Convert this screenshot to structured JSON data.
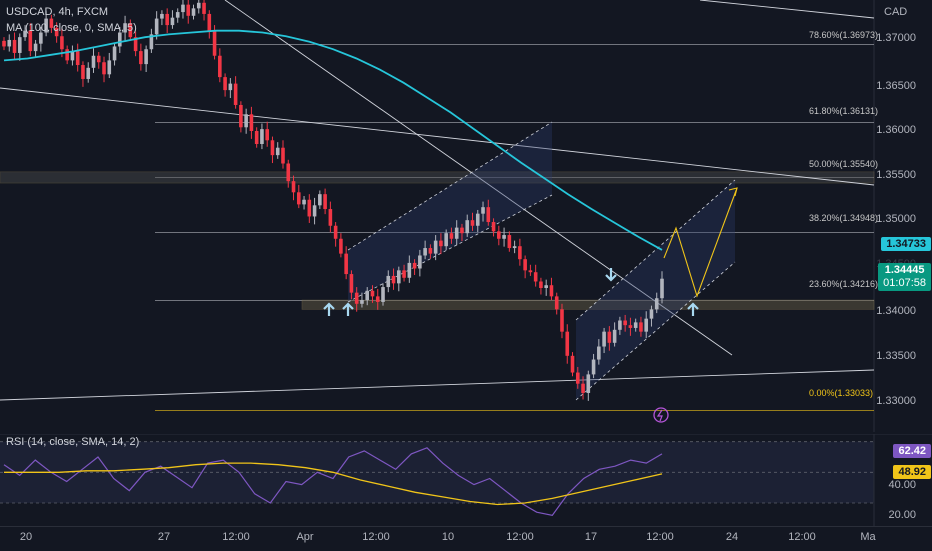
{
  "header": {
    "symbol": "USDCAD, 4h, FXCM",
    "ma_indicator": "MA (100, close, 0, SMA, 5)",
    "currency": "CAD"
  },
  "price_axis": {
    "labels": [
      "1.37000",
      "1.36500",
      "1.36000",
      "1.35500",
      "1.35000",
      "1.34500",
      "1.34000",
      "1.33500",
      "1.33000"
    ],
    "ma_value": "1.34733",
    "last_price": "1.34445",
    "countdown": "01:07:58"
  },
  "fib_levels": [
    {
      "label": "78.60%(1.36973)",
      "value": 1.36973
    },
    {
      "label": "61.80%(1.36131)",
      "value": 1.36131
    },
    {
      "label": "50.00%(1.35540)",
      "value": 1.3554
    },
    {
      "label": "38.20%(1.34948)",
      "value": 1.34948
    },
    {
      "label": "23.60%(1.34216)",
      "value": 1.34216
    },
    {
      "label": "0.00%(1.33033)",
      "value": 1.33033
    }
  ],
  "time_axis": {
    "labels": [
      "20",
      "27",
      "12:00",
      "Apr",
      "12:00",
      "10",
      "12:00",
      "17",
      "12:00",
      "24",
      "12:00",
      "Ma"
    ]
  },
  "rsi": {
    "legend": "RSI (14, close, SMA, 14, 2)",
    "value": "62.42",
    "sma_value": "48.92",
    "axis_labels": [
      "40.00",
      "20.00"
    ]
  },
  "colors": {
    "background": "#131722",
    "up_candle": "#b2b5be",
    "down_candle": "#f23645",
    "ma_line": "#26c6da",
    "rsi_line": "#7e57c2",
    "rsi_sma": "#f0c419",
    "last_price_badge": "#089981"
  },
  "chart_data": {
    "type": "line",
    "y_range": [
      1.328,
      1.3745
    ],
    "rsi_range": [
      15,
      75
    ],
    "candles_close": [
      1.3695,
      1.3702,
      1.3688,
      1.3705,
      1.3712,
      1.369,
      1.3698,
      1.371,
      1.3725,
      1.3715,
      1.3706,
      1.3692,
      1.368,
      1.369,
      1.3675,
      1.366,
      1.3672,
      1.3685,
      1.3678,
      1.3665,
      1.368,
      1.3695,
      1.371,
      1.372,
      1.3705,
      1.369,
      1.3676,
      1.3692,
      1.3708,
      1.3725,
      1.373,
      1.3718,
      1.3726,
      1.3732,
      1.374,
      1.3728,
      1.3736,
      1.3742,
      1.373,
      1.3712,
      1.3685,
      1.3662,
      1.3648,
      1.3655,
      1.3632,
      1.3608,
      1.3622,
      1.3604,
      1.359,
      1.3606,
      1.3594,
      1.3578,
      1.3586,
      1.3569,
      1.355,
      1.3538,
      1.3525,
      1.353,
      1.3512,
      1.3524,
      1.3536,
      1.352,
      1.3502,
      1.3488,
      1.3472,
      1.345,
      1.343,
      1.3418,
      1.3422,
      1.3432,
      1.3426,
      1.342,
      1.3436,
      1.3448,
      1.344,
      1.3454,
      1.3446,
      1.3462,
      1.3456,
      1.347,
      1.3478,
      1.3472,
      1.3486,
      1.348,
      1.3494,
      1.3488,
      1.35,
      1.3494,
      1.3508,
      1.3502,
      1.3515,
      1.3522,
      1.3506,
      1.3496,
      1.3488,
      1.3492,
      1.3478,
      1.348,
      1.3466,
      1.3454,
      1.3452,
      1.3442,
      1.3435,
      1.3438,
      1.3426,
      1.3412,
      1.3388,
      1.3362,
      1.3344,
      1.3332,
      1.3322,
      1.3342,
      1.3358,
      1.3372,
      1.3388,
      1.3376,
      1.339,
      1.34,
      1.3395,
      1.3392,
      1.3398,
      1.3388,
      1.3402,
      1.3412,
      1.3424,
      1.3445
    ],
    "ma_100": [
      1.368,
      1.3682,
      1.3686,
      1.369,
      1.3695,
      1.37,
      1.3705,
      1.3708,
      1.371,
      1.3712,
      1.3712,
      1.371,
      1.3706,
      1.37,
      1.3692,
      1.3682,
      1.367,
      1.3656,
      1.364,
      1.3624,
      1.3606,
      1.3588,
      1.357,
      1.3553,
      1.3536,
      1.352,
      1.3505,
      1.349,
      1.3476
    ],
    "rsi_values": [
      55,
      48,
      58,
      50,
      44,
      52,
      60,
      46,
      38,
      50,
      54,
      47,
      40,
      56,
      58,
      50,
      36,
      30,
      44,
      42,
      50,
      46,
      60,
      64,
      58,
      52,
      62,
      66,
      56,
      48,
      42,
      46,
      38,
      30,
      24,
      22,
      36,
      46,
      52,
      54,
      58,
      56,
      62
    ],
    "rsi_sma": [
      50,
      50,
      50,
      51,
      51,
      52,
      53,
      55,
      56,
      56,
      55,
      53,
      50,
      45,
      41,
      37,
      34,
      31,
      29,
      30,
      33,
      37,
      41,
      45,
      49
    ]
  }
}
